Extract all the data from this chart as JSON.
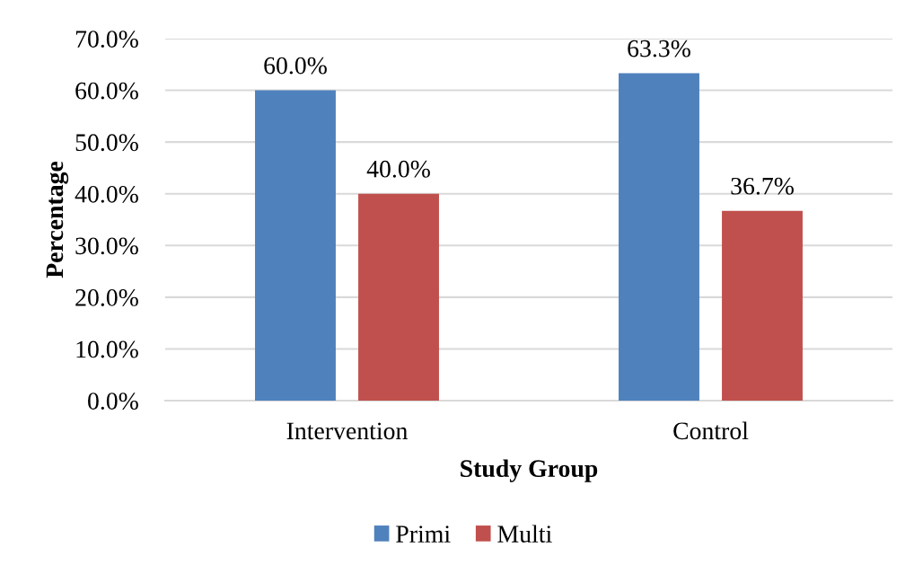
{
  "chart_data": {
    "type": "bar",
    "xlabel": "Study Group",
    "ylabel": "Percentage",
    "categories": [
      "Intervention",
      "Control"
    ],
    "series": [
      {
        "name": "Primi",
        "color": "#4f81bd",
        "values": [
          60.0,
          63.3
        ],
        "value_labels": [
          "60.0%",
          "63.3%"
        ]
      },
      {
        "name": "Multi",
        "color": "#c0504d",
        "values": [
          40.0,
          36.7
        ],
        "value_labels": [
          "40.0%",
          "36.7%"
        ]
      }
    ],
    "ylim": [
      0,
      70
    ],
    "yticks": [
      {
        "value": 0,
        "label": "0.0%"
      },
      {
        "value": 10,
        "label": "10.0%"
      },
      {
        "value": 20,
        "label": "20.0%"
      },
      {
        "value": 30,
        "label": "30.0%"
      },
      {
        "value": 40,
        "label": "40.0%"
      },
      {
        "value": 50,
        "label": "50.0%"
      },
      {
        "value": 60,
        "label": "60.0%"
      },
      {
        "value": 70,
        "label": "70.0%"
      }
    ],
    "grid": "y",
    "legend": "bottom"
  }
}
